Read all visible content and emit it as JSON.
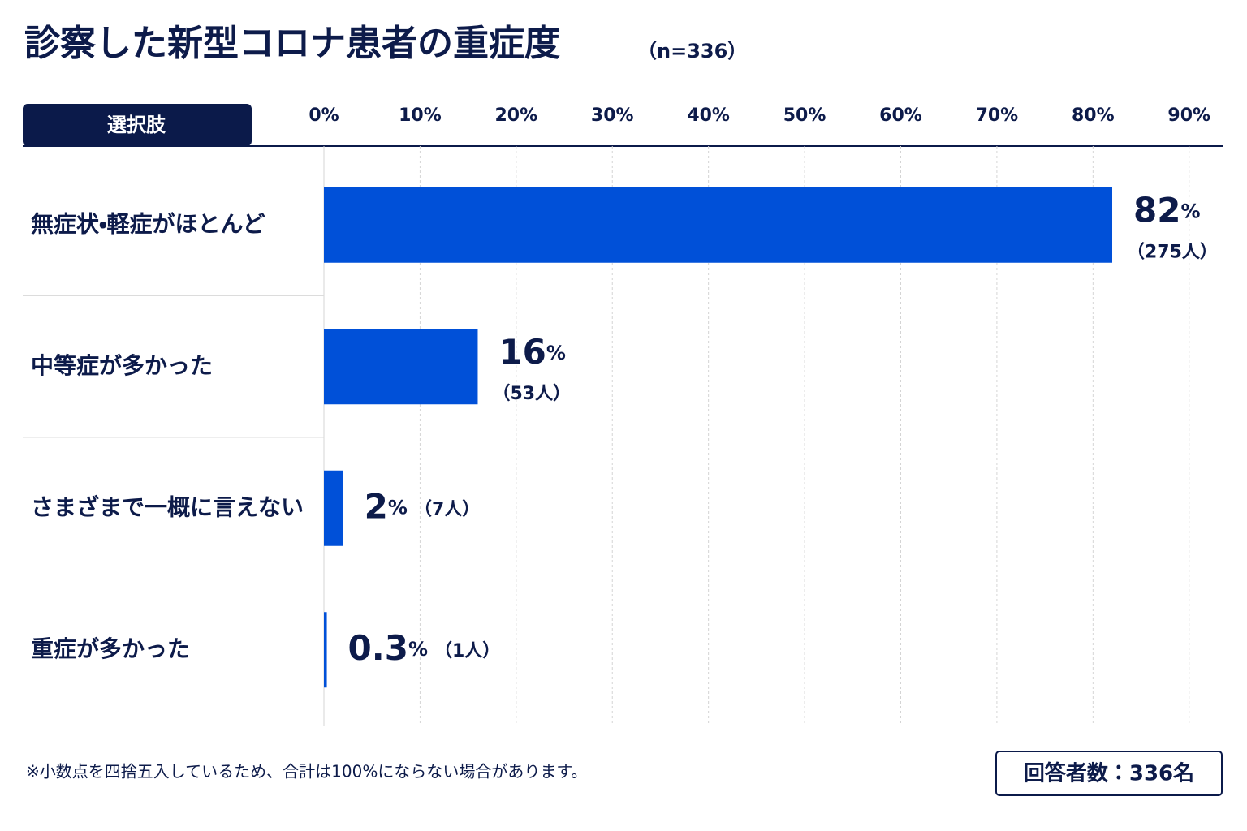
{
  "chart_data": {
    "type": "bar",
    "orientation": "horizontal",
    "title": "診察した新型コロナ患者の重症度",
    "subtitle": "（n=336）",
    "category_header": "選択肢",
    "categories": [
      "無症状・軽症がほとんど",
      "中等症が多かった",
      "さまざまで一概に言えない",
      "重症が多かった"
    ],
    "values": [
      82,
      16,
      2,
      0.3
    ],
    "value_labels": [
      "82%",
      "16%",
      "2%",
      "0.3%"
    ],
    "count_labels": [
      "（275人）",
      "（53人）",
      "（7人）",
      "（1人）"
    ],
    "color": "#0050d8",
    "xlim": [
      0,
      93.4
    ],
    "xticks": [
      {
        "value": 0,
        "label": "0%"
      },
      {
        "value": 10,
        "label": "10%"
      },
      {
        "value": 20,
        "label": "20%"
      },
      {
        "value": 30,
        "label": "30%"
      },
      {
        "value": 40,
        "label": "40%"
      },
      {
        "value": 50,
        "label": "50%"
      },
      {
        "value": 60,
        "label": "60%"
      },
      {
        "value": 70,
        "label": "70%"
      },
      {
        "value": 80,
        "label": "80%"
      },
      {
        "value": 90,
        "label": "90%"
      }
    ],
    "grid": true,
    "footnote": "※小数点を四捨五入しているため、合計は100%にならない場合があります。",
    "respondents": "回答者数：336名"
  }
}
